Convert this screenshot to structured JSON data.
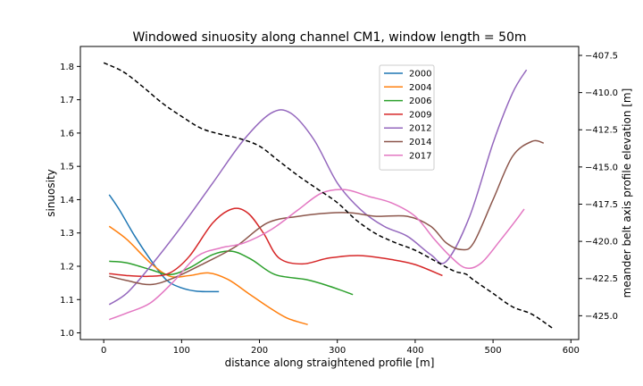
{
  "chart_data": {
    "type": "line",
    "title": "Windowed sinuosity along channel CM1, window length = 50m",
    "xlabel": "distance along straightened profile [m]",
    "ylabel": "sinuosity",
    "y2label": "meander belt axis profile elevation [m]",
    "xlim": [
      -30,
      610
    ],
    "ylim": [
      0.98,
      1.86
    ],
    "y2lim": [
      -426.6,
      -406.9
    ],
    "xticks": [
      0,
      100,
      200,
      300,
      400,
      500,
      600
    ],
    "xtick_labels": [
      "0",
      "100",
      "200",
      "300",
      "400",
      "500",
      "600"
    ],
    "yticks": [
      1.0,
      1.1,
      1.2,
      1.3,
      1.4,
      1.5,
      1.6,
      1.7,
      1.8
    ],
    "ytick_labels": [
      "1.0",
      "1.1",
      "1.2",
      "1.3",
      "1.4",
      "1.5",
      "1.6",
      "1.7",
      "1.8"
    ],
    "y2ticks": [
      -425.0,
      -422.5,
      -420.0,
      -417.5,
      -415.0,
      -412.5,
      -410.0,
      -407.5
    ],
    "y2tick_labels": [
      "−425.0",
      "−422.5",
      "−420.0",
      "−417.5",
      "−415.0",
      "−412.5",
      "−410.0",
      "−407.5"
    ],
    "legend_position": "upper-center",
    "series": [
      {
        "name": "2000",
        "color": "#1f77b4",
        "points": [
          [
            7,
            1.415
          ],
          [
            20,
            1.37
          ],
          [
            40,
            1.29
          ],
          [
            60,
            1.22
          ],
          [
            80,
            1.16
          ],
          [
            100,
            1.135
          ],
          [
            120,
            1.125
          ],
          [
            148,
            1.124
          ]
        ]
      },
      {
        "name": "2004",
        "color": "#ff7f0e",
        "points": [
          [
            7,
            1.32
          ],
          [
            30,
            1.28
          ],
          [
            60,
            1.21
          ],
          [
            85,
            1.17
          ],
          [
            110,
            1.172
          ],
          [
            135,
            1.18
          ],
          [
            160,
            1.16
          ],
          [
            185,
            1.12
          ],
          [
            210,
            1.08
          ],
          [
            235,
            1.045
          ],
          [
            262,
            1.025
          ]
        ]
      },
      {
        "name": "2006",
        "color": "#2ca02c",
        "points": [
          [
            7,
            1.215
          ],
          [
            30,
            1.21
          ],
          [
            60,
            1.19
          ],
          [
            85,
            1.175
          ],
          [
            110,
            1.195
          ],
          [
            140,
            1.235
          ],
          [
            165,
            1.245
          ],
          [
            190,
            1.22
          ],
          [
            220,
            1.175
          ],
          [
            260,
            1.16
          ],
          [
            290,
            1.14
          ],
          [
            320,
            1.115
          ]
        ]
      },
      {
        "name": "2009",
        "color": "#d62728",
        "points": [
          [
            7,
            1.178
          ],
          [
            30,
            1.172
          ],
          [
            60,
            1.17
          ],
          [
            85,
            1.18
          ],
          [
            110,
            1.23
          ],
          [
            140,
            1.33
          ],
          [
            165,
            1.372
          ],
          [
            185,
            1.36
          ],
          [
            205,
            1.3
          ],
          [
            225,
            1.225
          ],
          [
            255,
            1.207
          ],
          [
            290,
            1.225
          ],
          [
            330,
            1.232
          ],
          [
            370,
            1.22
          ],
          [
            400,
            1.205
          ],
          [
            435,
            1.172
          ]
        ]
      },
      {
        "name": "2012",
        "color": "#9467bd",
        "points": [
          [
            7,
            1.085
          ],
          [
            30,
            1.12
          ],
          [
            60,
            1.2
          ],
          [
            100,
            1.32
          ],
          [
            140,
            1.45
          ],
          [
            180,
            1.58
          ],
          [
            215,
            1.66
          ],
          [
            240,
            1.66
          ],
          [
            270,
            1.58
          ],
          [
            300,
            1.45
          ],
          [
            330,
            1.37
          ],
          [
            360,
            1.32
          ],
          [
            390,
            1.29
          ],
          [
            420,
            1.235
          ],
          [
            440,
            1.215
          ],
          [
            470,
            1.35
          ],
          [
            500,
            1.57
          ],
          [
            525,
            1.72
          ],
          [
            543,
            1.79
          ]
        ]
      },
      {
        "name": "2014",
        "color": "#8c564b",
        "points": [
          [
            7,
            1.17
          ],
          [
            30,
            1.157
          ],
          [
            60,
            1.145
          ],
          [
            90,
            1.165
          ],
          [
            130,
            1.21
          ],
          [
            170,
            1.26
          ],
          [
            210,
            1.33
          ],
          [
            250,
            1.35
          ],
          [
            290,
            1.36
          ],
          [
            320,
            1.36
          ],
          [
            350,
            1.35
          ],
          [
            390,
            1.35
          ],
          [
            420,
            1.32
          ],
          [
            440,
            1.27
          ],
          [
            460,
            1.25
          ],
          [
            475,
            1.27
          ],
          [
            500,
            1.4
          ],
          [
            525,
            1.53
          ],
          [
            550,
            1.575
          ],
          [
            565,
            1.57
          ]
        ]
      },
      {
        "name": "2017",
        "color": "#e377c2",
        "points": [
          [
            7,
            1.04
          ],
          [
            30,
            1.06
          ],
          [
            60,
            1.09
          ],
          [
            90,
            1.155
          ],
          [
            120,
            1.23
          ],
          [
            150,
            1.255
          ],
          [
            180,
            1.27
          ],
          [
            215,
            1.31
          ],
          [
            250,
            1.37
          ],
          [
            280,
            1.42
          ],
          [
            310,
            1.43
          ],
          [
            340,
            1.41
          ],
          [
            370,
            1.39
          ],
          [
            400,
            1.35
          ],
          [
            425,
            1.28
          ],
          [
            445,
            1.23
          ],
          [
            465,
            1.195
          ],
          [
            485,
            1.21
          ],
          [
            510,
            1.28
          ],
          [
            530,
            1.34
          ],
          [
            540,
            1.372
          ]
        ]
      }
    ],
    "elevation": {
      "style": "dashed",
      "color": "#000000",
      "points": [
        [
          0,
          -408.0
        ],
        [
          25,
          -408.6
        ],
        [
          50,
          -409.6
        ],
        [
          75,
          -410.7
        ],
        [
          100,
          -411.6
        ],
        [
          125,
          -412.4
        ],
        [
          150,
          -412.8
        ],
        [
          175,
          -413.1
        ],
        [
          200,
          -413.6
        ],
        [
          225,
          -414.6
        ],
        [
          250,
          -415.6
        ],
        [
          275,
          -416.5
        ],
        [
          300,
          -417.4
        ],
        [
          325,
          -418.6
        ],
        [
          350,
          -419.5
        ],
        [
          375,
          -420.1
        ],
        [
          400,
          -420.6
        ],
        [
          425,
          -421.3
        ],
        [
          450,
          -422.0
        ],
        [
          465,
          -422.2
        ],
        [
          475,
          -422.6
        ],
        [
          500,
          -423.5
        ],
        [
          525,
          -424.4
        ],
        [
          550,
          -424.9
        ],
        [
          578,
          -425.9
        ]
      ]
    }
  }
}
